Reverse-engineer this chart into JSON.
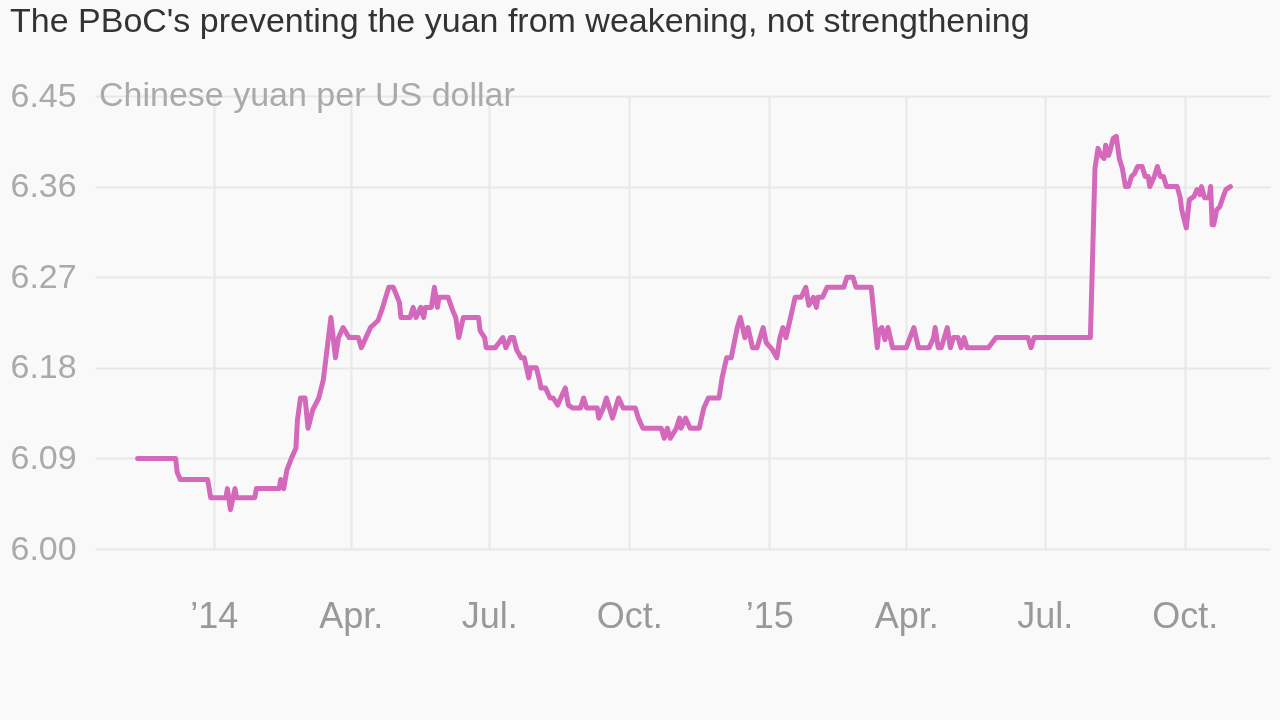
{
  "chart_data": {
    "type": "line",
    "title": "The PBoC's preventing the yuan from weakening, not strengthening",
    "ylabel": "Chinese yuan per US dollar",
    "x": [
      "2013-11-12",
      "2013-12-07",
      "2013-12-08",
      "2013-12-10",
      "2013-12-28",
      "2013-12-30",
      "2013-12-31",
      "2014-01-09",
      "2014-01-10",
      "2014-01-12",
      "2014-01-15",
      "2014-01-16",
      "2014-01-28",
      "2014-01-29",
      "2014-02-13",
      "2014-02-14",
      "2014-02-16",
      "2014-02-18",
      "2014-02-21",
      "2014-02-24",
      "2014-02-25",
      "2014-02-27",
      "2014-03-02",
      "2014-03-04",
      "2014-03-07",
      "2014-03-11",
      "2014-03-14",
      "2014-03-19",
      "2014-03-22",
      "2014-03-24",
      "2014-03-27",
      "2014-03-31",
      "2014-04-06",
      "2014-04-08",
      "2014-04-11",
      "2014-04-14",
      "2014-04-19",
      "2014-04-22",
      "2014-04-24",
      "2014-04-26",
      "2014-04-29",
      "2014-05-03",
      "2014-05-04",
      "2014-05-10",
      "2014-05-12",
      "2014-05-14",
      "2014-05-17",
      "2014-05-19",
      "2014-05-20",
      "2014-05-24",
      "2014-05-26",
      "2014-05-28",
      "2014-05-29",
      "2014-06-04",
      "2014-06-07",
      "2014-06-09",
      "2014-06-11",
      "2014-06-14",
      "2014-06-16",
      "2014-06-24",
      "2014-06-25",
      "2014-06-28",
      "2014-06-29",
      "2014-07-05",
      "2014-07-10",
      "2014-07-12",
      "2014-07-15",
      "2014-07-17",
      "2014-07-19",
      "2014-07-22",
      "2014-07-24",
      "2014-07-27",
      "2014-07-28",
      "2014-08-01",
      "2014-08-03",
      "2014-08-04",
      "2014-08-07",
      "2014-08-10",
      "2014-08-12",
      "2014-08-15",
      "2014-08-17",
      "2014-08-20",
      "2014-08-22",
      "2014-08-25",
      "2014-08-30",
      "2014-09-01",
      "2014-09-03",
      "2014-09-10",
      "2014-09-11",
      "2014-09-14",
      "2014-09-16",
      "2014-09-18",
      "2014-09-20",
      "2014-09-24",
      "2014-09-27",
      "2014-10-05",
      "2014-10-07",
      "2014-10-10",
      "2014-10-22",
      "2014-10-24",
      "2014-10-26",
      "2014-10-28",
      "2014-11-01",
      "2014-11-03",
      "2014-11-04",
      "2014-11-07",
      "2014-11-10",
      "2014-11-16",
      "2014-11-19",
      "2014-11-22",
      "2014-11-29",
      "2014-12-01",
      "2014-12-04",
      "2014-12-07",
      "2014-12-11",
      "2014-12-13",
      "2014-12-16",
      "2014-12-18",
      "2014-12-21",
      "2014-12-24",
      "2014-12-28",
      "2014-12-30",
      "2015-01-03",
      "2015-01-06",
      "2015-01-08",
      "2015-01-10",
      "2015-01-12",
      "2015-01-15",
      "2015-01-18",
      "2015-01-22",
      "2015-01-25",
      "2015-01-27",
      "2015-01-30",
      "2015-02-01",
      "2015-02-02",
      "2015-02-05",
      "2015-02-08",
      "2015-02-19",
      "2015-02-21",
      "2015-02-25",
      "2015-02-27",
      "2015-03-09",
      "2015-03-11",
      "2015-03-13",
      "2015-03-14",
      "2015-03-16",
      "2015-03-18",
      "2015-03-20",
      "2015-03-23",
      "2015-04-01",
      "2015-04-04",
      "2015-04-06",
      "2015-04-09",
      "2015-04-16",
      "2015-04-19",
      "2015-04-20",
      "2015-04-22",
      "2015-04-24",
      "2015-04-26",
      "2015-04-28",
      "2015-04-30",
      "2015-05-02",
      "2015-05-05",
      "2015-05-07",
      "2015-05-09",
      "2015-05-11",
      "2015-05-25",
      "2015-05-30",
      "2015-06-20",
      "2015-06-22",
      "2015-06-24",
      "2015-07-31",
      "2015-08-03",
      "2015-08-05",
      "2015-08-07",
      "2015-08-09",
      "2015-08-10",
      "2015-08-12",
      "2015-08-13",
      "2015-08-15",
      "2015-08-17",
      "2015-08-19",
      "2015-08-21",
      "2015-08-23",
      "2015-08-25",
      "2015-08-27",
      "2015-08-29",
      "2015-08-31",
      "2015-09-03",
      "2015-09-05",
      "2015-09-07",
      "2015-09-08",
      "2015-09-11",
      "2015-09-13",
      "2015-09-15",
      "2015-09-17",
      "2015-09-19",
      "2015-09-26",
      "2015-09-28",
      "2015-09-29",
      "2015-10-02",
      "2015-10-04",
      "2015-10-07",
      "2015-10-09",
      "2015-10-11",
      "2015-10-12",
      "2015-10-14",
      "2015-10-17",
      "2015-10-18",
      "2015-10-19",
      "2015-10-20",
      "2015-10-22",
      "2015-10-24",
      "2015-10-26",
      "2015-10-28",
      "2015-10-31"
    ],
    "series": [
      {
        "color": "#d468bb",
        "values": [
          6.09,
          6.09,
          6.076,
          6.069,
          6.069,
          6.051,
          6.051,
          6.051,
          6.06,
          6.039,
          6.06,
          6.051,
          6.051,
          6.06,
          6.06,
          6.069,
          6.06,
          6.078,
          6.09,
          6.1,
          6.128,
          6.15,
          6.15,
          6.12,
          6.138,
          6.15,
          6.168,
          6.23,
          6.19,
          6.21,
          6.22,
          6.21,
          6.21,
          6.2,
          6.21,
          6.22,
          6.227,
          6.24,
          6.25,
          6.26,
          6.26,
          6.245,
          6.23,
          6.23,
          6.24,
          6.23,
          6.24,
          6.23,
          6.24,
          6.24,
          6.26,
          6.24,
          6.25,
          6.25,
          6.237,
          6.23,
          6.21,
          6.23,
          6.23,
          6.23,
          6.217,
          6.21,
          6.2,
          6.2,
          6.21,
          6.2,
          6.21,
          6.21,
          6.198,
          6.19,
          6.19,
          6.17,
          6.18,
          6.18,
          6.168,
          6.16,
          6.16,
          6.15,
          6.15,
          6.143,
          6.15,
          6.16,
          6.143,
          6.14,
          6.14,
          6.15,
          6.14,
          6.14,
          6.13,
          6.14,
          6.15,
          6.14,
          6.13,
          6.15,
          6.14,
          6.14,
          6.13,
          6.12,
          6.12,
          6.11,
          6.12,
          6.11,
          6.12,
          6.13,
          6.12,
          6.13,
          6.12,
          6.12,
          6.14,
          6.15,
          6.15,
          6.17,
          6.19,
          6.19,
          6.22,
          6.23,
          6.21,
          6.22,
          6.2,
          6.2,
          6.22,
          6.205,
          6.198,
          6.19,
          6.21,
          6.22,
          6.21,
          6.23,
          6.25,
          6.25,
          6.26,
          6.242,
          6.25,
          6.24,
          6.25,
          6.25,
          6.26,
          6.26,
          6.27,
          6.27,
          6.26,
          6.26,
          6.23,
          6.2,
          6.217,
          6.22,
          6.208,
          6.22,
          6.2,
          6.2,
          6.212,
          6.22,
          6.2,
          6.2,
          6.21,
          6.22,
          6.2,
          6.2,
          6.21,
          6.22,
          6.2,
          6.21,
          6.21,
          6.2,
          6.21,
          6.2,
          6.2,
          6.21,
          6.21,
          6.2,
          6.21,
          6.21,
          6.378,
          6.398,
          6.391,
          6.388,
          6.401,
          6.391,
          6.396,
          6.408,
          6.41,
          6.388,
          6.378,
          6.36,
          6.36,
          6.37,
          6.373,
          6.38,
          6.38,
          6.37,
          6.37,
          6.36,
          6.37,
          6.38,
          6.37,
          6.37,
          6.36,
          6.36,
          6.349,
          6.337,
          6.319,
          6.347,
          6.35,
          6.357,
          6.352,
          6.36,
          6.349,
          6.349,
          6.36,
          6.322,
          6.322,
          6.337,
          6.34,
          6.349,
          6.357,
          6.36
        ]
      }
    ],
    "xlim": [
      "2013-10-15",
      "2015-11-26"
    ],
    "xticks": [
      {
        "value": "2014-01-01",
        "label": "’14"
      },
      {
        "value": "2014-04-01",
        "label": "Apr."
      },
      {
        "value": "2014-07-01",
        "label": "Jul."
      },
      {
        "value": "2014-10-01",
        "label": "Oct."
      },
      {
        "value": "2015-01-01",
        "label": "’15"
      },
      {
        "value": "2015-04-01",
        "label": "Apr."
      },
      {
        "value": "2015-07-01",
        "label": "Jul."
      },
      {
        "value": "2015-10-01",
        "label": "Oct."
      }
    ],
    "ylim": [
      6.0,
      6.45
    ],
    "yticks": [
      {
        "value": 6.0,
        "label": "6.00"
      },
      {
        "value": 6.09,
        "label": "6.09"
      },
      {
        "value": 6.18,
        "label": "6.18"
      },
      {
        "value": 6.27,
        "label": "6.27"
      },
      {
        "value": 6.36,
        "label": "6.36"
      },
      {
        "value": 6.45,
        "label": "6.45"
      }
    ],
    "grid": true
  }
}
